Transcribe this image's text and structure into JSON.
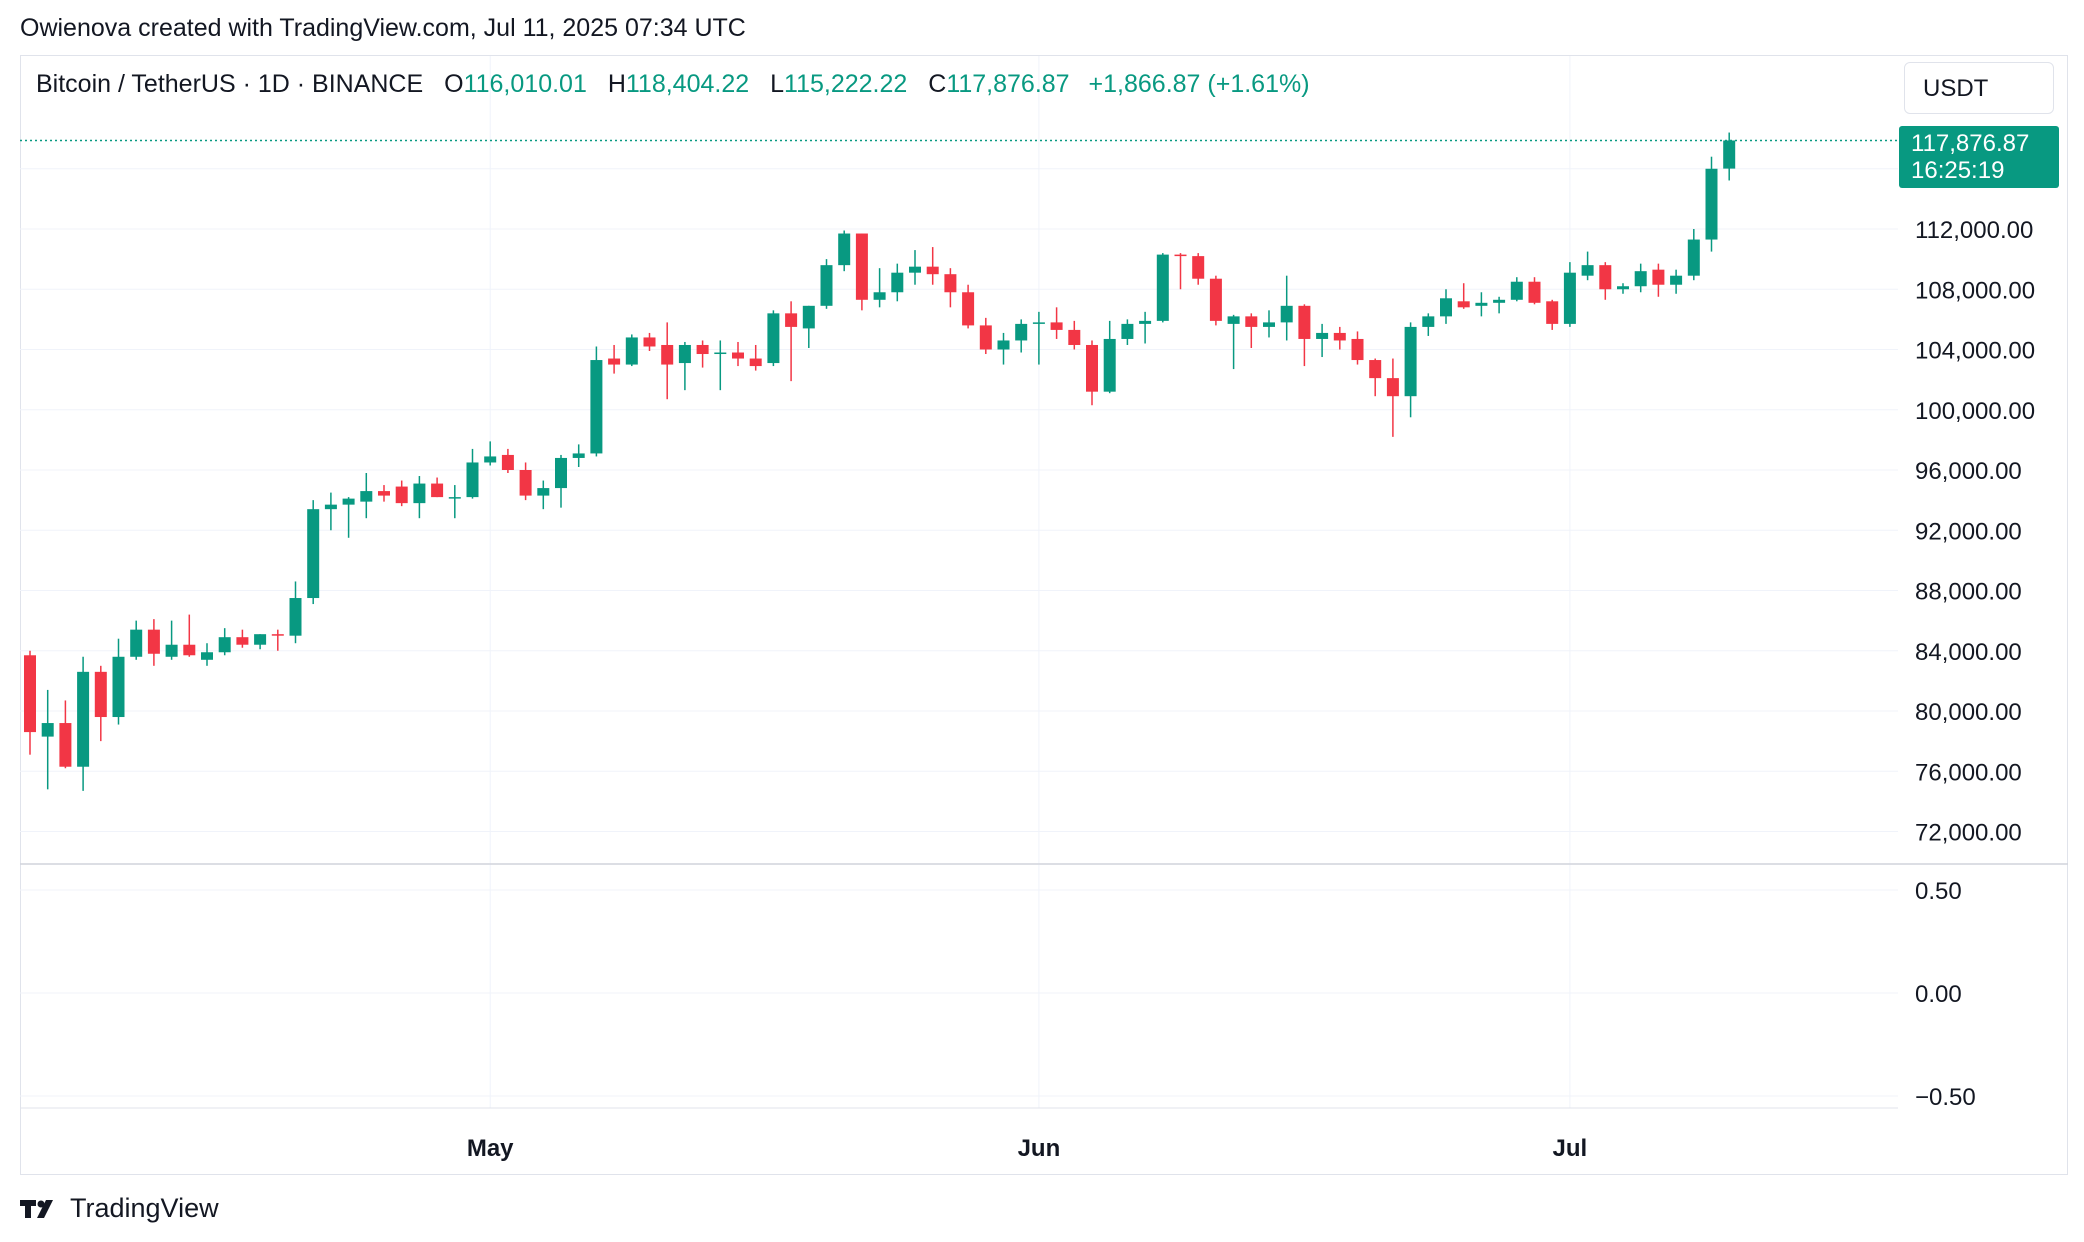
{
  "header": {
    "credit": "Owienova created with TradingView.com, Jul 11, 2025 07:34 UTC"
  },
  "legend": {
    "symbol": "Bitcoin / TetherUS · 1D · BINANCE",
    "open_label": "O",
    "open": "116,010.01",
    "high_label": "H",
    "high": "118,404.22",
    "low_label": "L",
    "low": "115,222.22",
    "close_label": "C",
    "close": "117,876.87",
    "change": "+1,866.87 (+1.61%)"
  },
  "unit_label": "USDT",
  "last_price": {
    "price": "117,876.87",
    "countdown": "16:25:19"
  },
  "footer": {
    "brand": "TradingView"
  },
  "colors": {
    "up": "#089981",
    "down": "#f23645",
    "grid": "#f0f3fa",
    "axis_text": "#131722"
  },
  "chart_data": {
    "type": "candlestick",
    "series_name": "",
    "y_ticks": [
      "112,000.00",
      "108,000.00",
      "104,000.00",
      "100,000.00",
      "96,000.00",
      "92,000.00",
      "88,000.00",
      "84,000.00",
      "80,000.00",
      "76,000.00",
      "72,000.00"
    ],
    "y_tick_values": [
      112000,
      108000,
      104000,
      100000,
      96000,
      92000,
      88000,
      84000,
      80000,
      76000,
      72000
    ],
    "ylim": [
      70000,
      119000
    ],
    "x_labels": [
      "May",
      "Jun",
      "Jul"
    ],
    "x_label_days": [
      26,
      57,
      87
    ],
    "last_price_value": 117876.87,
    "oscillator": {
      "ticks": [
        "0.50",
        "0.00",
        "−0.50"
      ],
      "tick_values": [
        0.5,
        0.0,
        -0.5
      ],
      "ylim": [
        -0.6,
        0.65
      ]
    },
    "candles": [
      {
        "o": 83700,
        "h": 84000,
        "l": 77100,
        "c": 78600
      },
      {
        "o": 78300,
        "h": 81400,
        "l": 74800,
        "c": 79200
      },
      {
        "o": 79200,
        "h": 80700,
        "l": 76200,
        "c": 76300
      },
      {
        "o": 76300,
        "h": 83600,
        "l": 74700,
        "c": 82600
      },
      {
        "o": 82600,
        "h": 83000,
        "l": 78000,
        "c": 79600
      },
      {
        "o": 79600,
        "h": 84800,
        "l": 79100,
        "c": 83600
      },
      {
        "o": 83600,
        "h": 86000,
        "l": 83400,
        "c": 85400
      },
      {
        "o": 85400,
        "h": 86100,
        "l": 83000,
        "c": 83800
      },
      {
        "o": 83600,
        "h": 86000,
        "l": 83400,
        "c": 84400
      },
      {
        "o": 84400,
        "h": 86400,
        "l": 83600,
        "c": 83700
      },
      {
        "o": 83400,
        "h": 84500,
        "l": 83000,
        "c": 83900
      },
      {
        "o": 83900,
        "h": 85500,
        "l": 83700,
        "c": 84900
      },
      {
        "o": 84900,
        "h": 85400,
        "l": 84200,
        "c": 84400
      },
      {
        "o": 84400,
        "h": 85100,
        "l": 84100,
        "c": 85100
      },
      {
        "o": 85100,
        "h": 85400,
        "l": 84000,
        "c": 85000
      },
      {
        "o": 85000,
        "h": 88600,
        "l": 84500,
        "c": 87500
      },
      {
        "o": 87500,
        "h": 94000,
        "l": 87100,
        "c": 93400
      },
      {
        "o": 93400,
        "h": 94500,
        "l": 92000,
        "c": 93700
      },
      {
        "o": 93700,
        "h": 94200,
        "l": 91500,
        "c": 94100
      },
      {
        "o": 93900,
        "h": 95800,
        "l": 92800,
        "c": 94600
      },
      {
        "o": 94600,
        "h": 95000,
        "l": 93900,
        "c": 94300
      },
      {
        "o": 94900,
        "h": 95300,
        "l": 93600,
        "c": 93800
      },
      {
        "o": 93800,
        "h": 95600,
        "l": 92800,
        "c": 95100
      },
      {
        "o": 95100,
        "h": 95500,
        "l": 94200,
        "c": 94200
      },
      {
        "o": 94200,
        "h": 95000,
        "l": 92800,
        "c": 94200
      },
      {
        "o": 94200,
        "h": 97400,
        "l": 94100,
        "c": 96500
      },
      {
        "o": 96500,
        "h": 97900,
        "l": 96300,
        "c": 96900
      },
      {
        "o": 97000,
        "h": 97400,
        "l": 95800,
        "c": 96000
      },
      {
        "o": 96000,
        "h": 96500,
        "l": 94000,
        "c": 94300
      },
      {
        "o": 94300,
        "h": 95300,
        "l": 93400,
        "c": 94800
      },
      {
        "o": 94800,
        "h": 97000,
        "l": 93500,
        "c": 96800
      },
      {
        "o": 96800,
        "h": 97700,
        "l": 96200,
        "c": 97100
      },
      {
        "o": 97100,
        "h": 104200,
        "l": 96900,
        "c": 103300
      },
      {
        "o": 103400,
        "h": 104300,
        "l": 102400,
        "c": 103000
      },
      {
        "o": 103000,
        "h": 105000,
        "l": 102900,
        "c": 104800
      },
      {
        "o": 104800,
        "h": 105100,
        "l": 103900,
        "c": 104200
      },
      {
        "o": 104300,
        "h": 105800,
        "l": 100700,
        "c": 103000
      },
      {
        "o": 103100,
        "h": 104500,
        "l": 101300,
        "c": 104300
      },
      {
        "o": 104300,
        "h": 104600,
        "l": 102800,
        "c": 103700
      },
      {
        "o": 103700,
        "h": 104600,
        "l": 101300,
        "c": 103800
      },
      {
        "o": 103800,
        "h": 104500,
        "l": 102900,
        "c": 103400
      },
      {
        "o": 103400,
        "h": 104300,
        "l": 102600,
        "c": 102900
      },
      {
        "o": 103100,
        "h": 106600,
        "l": 102900,
        "c": 106400
      },
      {
        "o": 106400,
        "h": 107200,
        "l": 101900,
        "c": 105500
      },
      {
        "o": 105400,
        "h": 106900,
        "l": 104100,
        "c": 106900
      },
      {
        "o": 106900,
        "h": 110000,
        "l": 106700,
        "c": 109600
      },
      {
        "o": 109600,
        "h": 111900,
        "l": 109200,
        "c": 111700
      },
      {
        "o": 111700,
        "h": 111700,
        "l": 106600,
        "c": 107300
      },
      {
        "o": 107300,
        "h": 109400,
        "l": 106800,
        "c": 107800
      },
      {
        "o": 107800,
        "h": 109700,
        "l": 107200,
        "c": 109100
      },
      {
        "o": 109100,
        "h": 110600,
        "l": 108300,
        "c": 109500
      },
      {
        "o": 109500,
        "h": 110800,
        "l": 108300,
        "c": 109000
      },
      {
        "o": 109000,
        "h": 109400,
        "l": 106800,
        "c": 107800
      },
      {
        "o": 107800,
        "h": 108300,
        "l": 105400,
        "c": 105600
      },
      {
        "o": 105600,
        "h": 106100,
        "l": 103700,
        "c": 104000
      },
      {
        "o": 104000,
        "h": 105100,
        "l": 103000,
        "c": 104600
      },
      {
        "o": 104600,
        "h": 106000,
        "l": 103800,
        "c": 105700
      },
      {
        "o": 105700,
        "h": 106500,
        "l": 103000,
        "c": 105800
      },
      {
        "o": 105800,
        "h": 106800,
        "l": 104700,
        "c": 105300
      },
      {
        "o": 105300,
        "h": 105900,
        "l": 104000,
        "c": 104300
      },
      {
        "o": 104300,
        "h": 104600,
        "l": 100300,
        "c": 101200
      },
      {
        "o": 101200,
        "h": 105900,
        "l": 101100,
        "c": 104700
      },
      {
        "o": 104700,
        "h": 106000,
        "l": 104300,
        "c": 105700
      },
      {
        "o": 105700,
        "h": 106500,
        "l": 104400,
        "c": 105900
      },
      {
        "o": 105900,
        "h": 110400,
        "l": 105800,
        "c": 110300
      },
      {
        "o": 110300,
        "h": 110400,
        "l": 108000,
        "c": 110200
      },
      {
        "o": 110200,
        "h": 110400,
        "l": 108300,
        "c": 108700
      },
      {
        "o": 108700,
        "h": 108900,
        "l": 105600,
        "c": 105900
      },
      {
        "o": 105700,
        "h": 106300,
        "l": 102700,
        "c": 106200
      },
      {
        "o": 106200,
        "h": 106400,
        "l": 104100,
        "c": 105500
      },
      {
        "o": 105500,
        "h": 106600,
        "l": 104800,
        "c": 105800
      },
      {
        "o": 105800,
        "h": 108900,
        "l": 104600,
        "c": 106900
      },
      {
        "o": 106900,
        "h": 107000,
        "l": 102900,
        "c": 104700
      },
      {
        "o": 104700,
        "h": 105700,
        "l": 103500,
        "c": 105100
      },
      {
        "o": 105100,
        "h": 105500,
        "l": 104000,
        "c": 104600
      },
      {
        "o": 104700,
        "h": 105200,
        "l": 103000,
        "c": 103300
      },
      {
        "o": 103300,
        "h": 103400,
        "l": 100900,
        "c": 102100
      },
      {
        "o": 102100,
        "h": 103400,
        "l": 98200,
        "c": 100900
      },
      {
        "o": 100900,
        "h": 105800,
        "l": 99500,
        "c": 105500
      },
      {
        "o": 105500,
        "h": 106400,
        "l": 104900,
        "c": 106200
      },
      {
        "o": 106200,
        "h": 108000,
        "l": 105700,
        "c": 107400
      },
      {
        "o": 107200,
        "h": 108400,
        "l": 106700,
        "c": 106800
      },
      {
        "o": 106900,
        "h": 107800,
        "l": 106200,
        "c": 107100
      },
      {
        "o": 107100,
        "h": 107500,
        "l": 106400,
        "c": 107300
      },
      {
        "o": 107300,
        "h": 108800,
        "l": 107200,
        "c": 108500
      },
      {
        "o": 108500,
        "h": 108800,
        "l": 107000,
        "c": 107100
      },
      {
        "o": 107200,
        "h": 107300,
        "l": 105300,
        "c": 105700
      },
      {
        "o": 105700,
        "h": 109800,
        "l": 105500,
        "c": 109100
      },
      {
        "o": 108900,
        "h": 110500,
        "l": 108600,
        "c": 109600
      },
      {
        "o": 109600,
        "h": 109800,
        "l": 107300,
        "c": 108000
      },
      {
        "o": 108000,
        "h": 108400,
        "l": 107700,
        "c": 108200
      },
      {
        "o": 108200,
        "h": 109700,
        "l": 107800,
        "c": 109200
      },
      {
        "o": 109300,
        "h": 109700,
        "l": 107500,
        "c": 108300
      },
      {
        "o": 108300,
        "h": 109300,
        "l": 107700,
        "c": 108900
      },
      {
        "o": 108900,
        "h": 112000,
        "l": 108600,
        "c": 111300
      },
      {
        "o": 111300,
        "h": 116800,
        "l": 110500,
        "c": 116000
      },
      {
        "o": 116010,
        "h": 118404,
        "l": 115222,
        "c": 117877
      }
    ]
  }
}
